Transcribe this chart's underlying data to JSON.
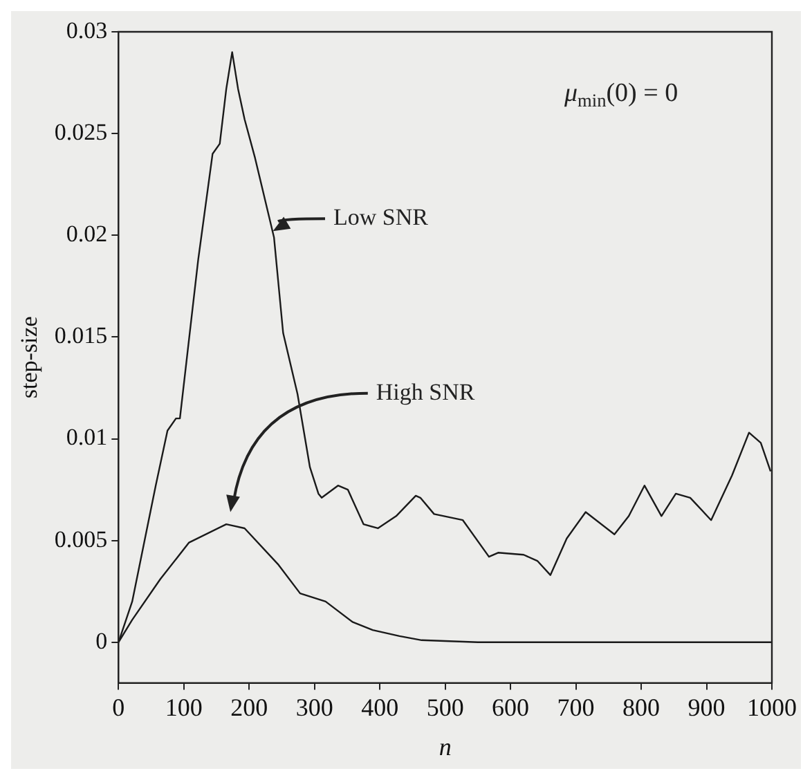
{
  "chart_data": {
    "type": "line",
    "xlabel": "n",
    "ylabel": "step-size",
    "xlim": [
      0,
      1000
    ],
    "xticks": [
      0,
      100,
      200,
      300,
      400,
      500,
      600,
      700,
      800,
      900,
      1000
    ],
    "ylim": [
      -0.002,
      0.03
    ],
    "yticks": [
      0,
      0.005,
      0.01,
      0.015,
      0.02,
      0.025,
      0.03
    ],
    "series": [
      {
        "color": "#1a1a1a",
        "x": [
          0,
          21,
          57,
          75,
          88,
          94,
          122,
          144,
          155,
          165,
          174,
          183,
          193,
          209,
          238,
          252,
          274,
          293,
          306,
          311,
          336,
          351,
          375,
          397,
          425,
          455,
          462,
          483,
          527,
          567,
          581,
          620,
          641,
          661,
          686,
          715,
          759,
          781,
          805,
          831,
          853,
          875,
          907,
          939,
          965,
          983,
          998
        ],
        "values": [
          0,
          0.002,
          0.0077,
          0.0104,
          0.011,
          0.011,
          0.0188,
          0.024,
          0.0245,
          0.0272,
          0.029,
          0.0272,
          0.0257,
          0.0238,
          0.0199,
          0.0152,
          0.0122,
          0.0086,
          0.0073,
          0.0071,
          0.0077,
          0.0075,
          0.0058,
          0.0056,
          0.0062,
          0.0072,
          0.0071,
          0.0063,
          0.006,
          0.0042,
          0.0044,
          0.0043,
          0.004,
          0.0033,
          0.0051,
          0.0064,
          0.0053,
          0.0062,
          0.0077,
          0.0062,
          0.0073,
          0.0071,
          0.006,
          0.0082,
          0.0103,
          0.0098,
          0.0084
        ]
      },
      {
        "color": "#1a1a1a",
        "x": [
          0,
          21,
          64,
          108,
          165,
          193,
          245,
          278,
          317,
          358,
          389,
          430,
          464,
          550,
          700,
          850,
          1000
        ],
        "values": [
          0,
          0.0011,
          0.0031,
          0.0049,
          0.0058,
          0.0056,
          0.0038,
          0.0024,
          0.002,
          0.001,
          0.0006,
          0.0003,
          0.0001,
          0,
          0,
          0,
          0
        ]
      }
    ],
    "annotations": [
      {
        "text": "Low SNR",
        "x": 240,
        "y": 0.02
      },
      "High SNR",
      "μ$_{min}$(0) = 0"
    ],
    "marker": "none",
    "line_style": "solid"
  }
}
